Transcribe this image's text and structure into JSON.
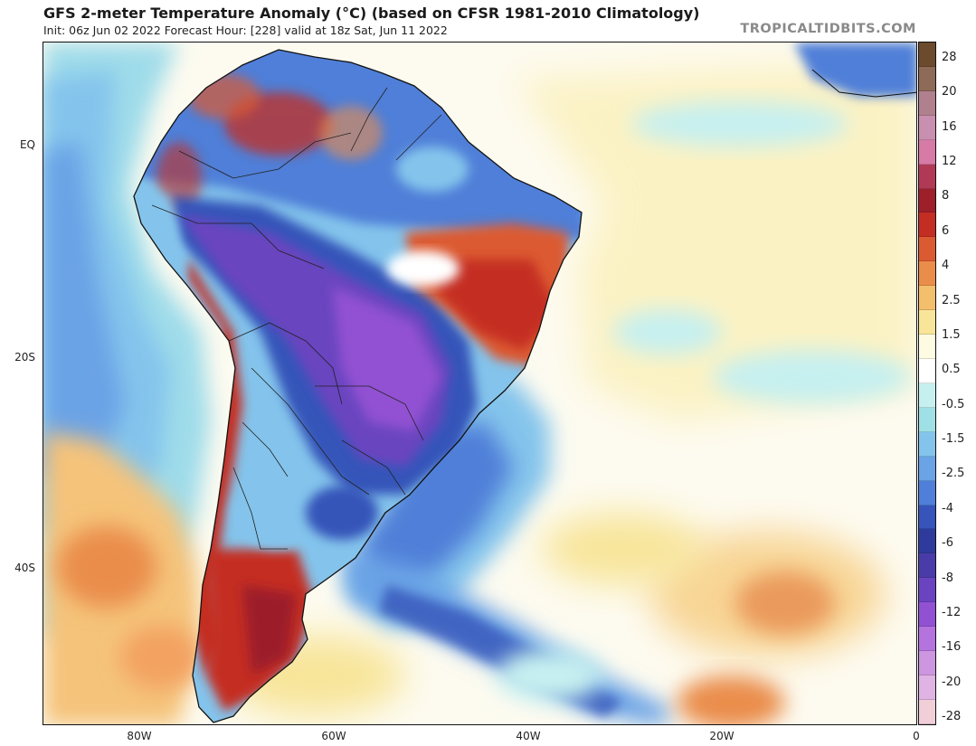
{
  "header": {
    "title": "GFS 2-meter Temperature Anomaly (°C) (based on CFSR 1981-2010 Climatology)",
    "subtitle": "Init: 06z Jun 02 2022   Forecast Hour: [228]   valid at 18z Sat, Jun 11 2022",
    "brand": "TROPICALTIDBITS.COM"
  },
  "map": {
    "latitude_labels": [
      "EQ",
      "20S",
      "40S"
    ],
    "longitude_labels": [
      "80W",
      "60W",
      "40W",
      "20W",
      "0"
    ]
  },
  "colorbar": {
    "labels": [
      "28",
      "20",
      "16",
      "12",
      "8",
      "6",
      "4",
      "2.5",
      "1.5",
      "0.5",
      "-0.5",
      "-1.5",
      "-2.5",
      "-4",
      "-6",
      "-8",
      "-12",
      "-16",
      "-20",
      "-28"
    ],
    "colors": [
      "#6b4a2e",
      "#8e6a58",
      "#b0808f",
      "#c98fb0",
      "#d67aa6",
      "#b03a56",
      "#9d1f2a",
      "#c42d24",
      "#dc5a32",
      "#ea8d4b",
      "#f3bf6c",
      "#f8e59a",
      "#fdfbe2",
      "#ffffff",
      "#c6f0f0",
      "#9fe0e6",
      "#84c4ec",
      "#6aa3e6",
      "#4f7fd8",
      "#3654b9",
      "#2f3b9c",
      "#4a3ca8",
      "#6a44c0",
      "#9251d2",
      "#b473dd",
      "#cc96e0",
      "#dfb3e3",
      "#f1cfd8"
    ]
  }
}
